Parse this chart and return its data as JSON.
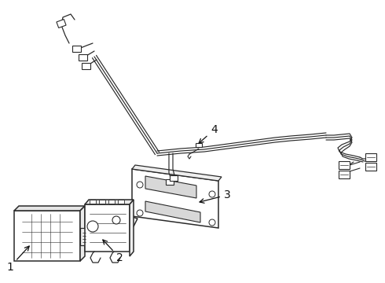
{
  "background_color": "#ffffff",
  "line_color": "#2a2a2a",
  "lw_main": 1.1,
  "lw_thin": 0.7,
  "label_fontsize": 9,
  "label_color": "#111111",
  "arrow_color": "#111111",
  "fig_w": 4.9,
  "fig_h": 3.6,
  "dpi": 100
}
